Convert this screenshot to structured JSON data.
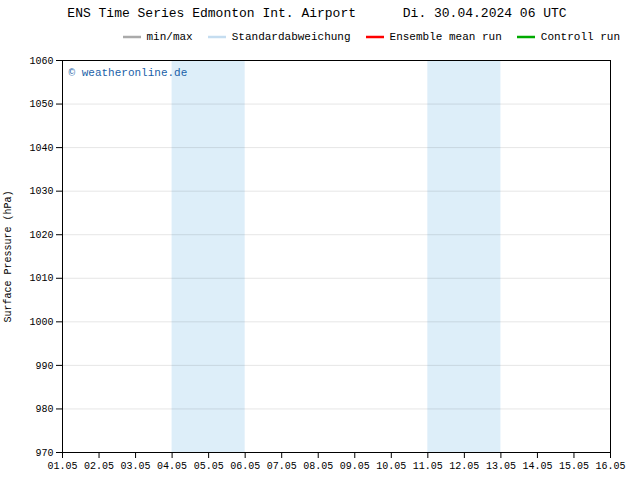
{
  "chart_data": {
    "type": "line",
    "title": "ENS Time Series Edmonton Int. Airport      Di. 30.04.2024 06 UTC",
    "ylabel": "Surface Pressure (hPa)",
    "categories": [
      "01.05",
      "02.05",
      "03.05",
      "04.05",
      "05.05",
      "06.05",
      "07.05",
      "08.05",
      "09.05",
      "10.05",
      "11.05",
      "12.05",
      "13.05",
      "14.05",
      "15.05",
      "16.05"
    ],
    "series": [
      {
        "name": "min/max",
        "color": "#aaaaaa",
        "values": [
          null,
          null,
          null,
          null,
          null,
          null,
          null,
          null,
          null,
          null,
          null,
          null,
          null,
          null,
          null,
          null
        ]
      },
      {
        "name": "Standardabweichung",
        "color": "#c5ddf0",
        "values": [
          null,
          null,
          null,
          null,
          null,
          null,
          null,
          null,
          null,
          null,
          null,
          null,
          null,
          null,
          null,
          null
        ]
      },
      {
        "name": "Ensemble mean run",
        "color": "#ff0000",
        "values": [
          null,
          null,
          null,
          null,
          null,
          null,
          null,
          null,
          null,
          null,
          null,
          null,
          null,
          null,
          null,
          null
        ]
      },
      {
        "name": "Controll run",
        "color": "#00aa00",
        "values": [
          null,
          null,
          null,
          null,
          null,
          null,
          null,
          null,
          null,
          null,
          null,
          null,
          null,
          null,
          null,
          null
        ]
      }
    ],
    "shaded_regions": [
      {
        "start": "04.05",
        "end": "06.05",
        "color": "#ddeef9"
      },
      {
        "start": "11.05",
        "end": "13.05",
        "color": "#ddeef9"
      }
    ],
    "annotations": [
      {
        "text": "© weatheronline.de",
        "color": "#1a5fa8"
      }
    ],
    "ylim": [
      970,
      1060
    ],
    "yticks": [
      970,
      980,
      990,
      1000,
      1010,
      1020,
      1030,
      1040,
      1050,
      1060
    ],
    "grid": true,
    "legend": "upper right"
  }
}
